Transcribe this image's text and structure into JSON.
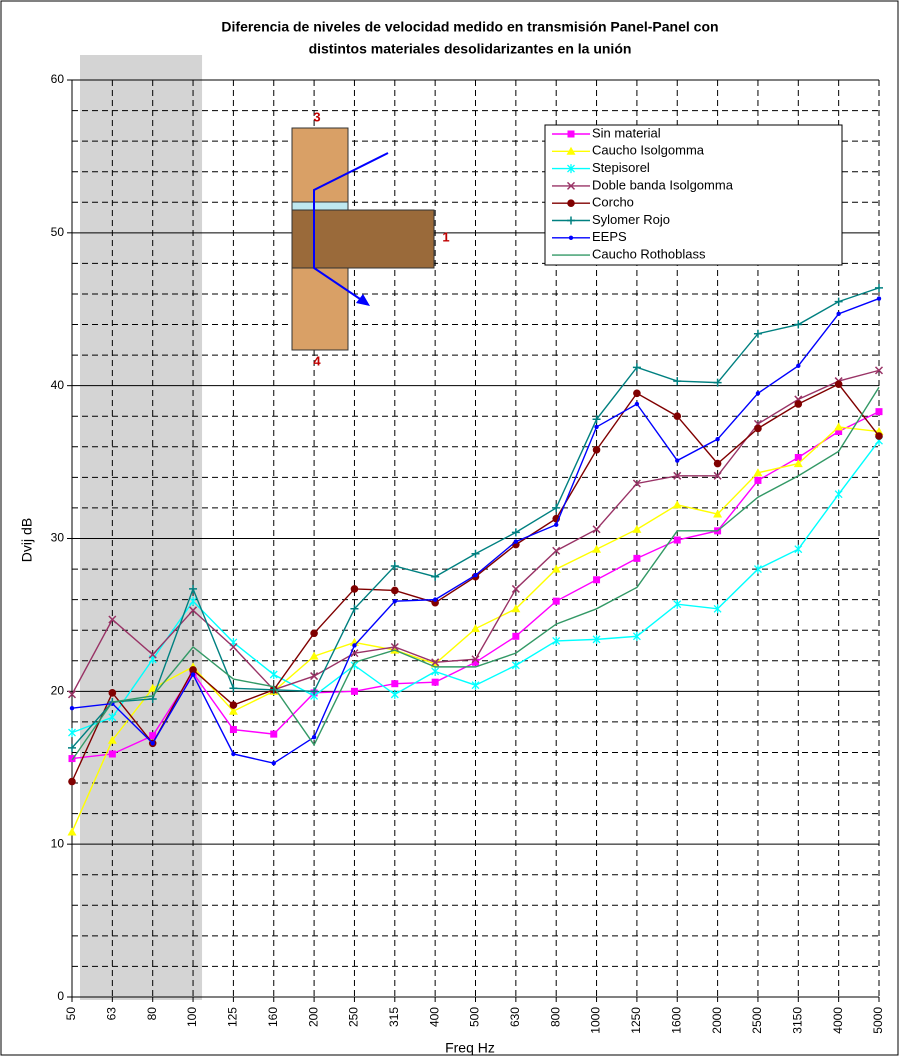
{
  "chart_data": {
    "type": "line",
    "title": [
      "Diferencia de niveles de velocidad medido en transmisión Panel-Panel con",
      "distintos materiales desolidarizantes en la unión"
    ],
    "x_label": "Freq  Hz",
    "y_label": "Dvij dB",
    "categories": [
      "50",
      "63",
      "80",
      "100",
      "125",
      "160",
      "200",
      "250",
      "315",
      "400",
      "500",
      "630",
      "800",
      "1000",
      "1250",
      "1600",
      "2000",
      "2500",
      "3150",
      "4000",
      "5000"
    ],
    "ylim": [
      0,
      60
    ],
    "yticks": [
      0,
      10,
      20,
      30,
      40,
      50,
      60
    ],
    "minor_yticks": [
      2,
      4,
      6,
      8,
      12,
      14,
      16,
      18,
      22,
      24,
      26,
      28,
      32,
      34,
      36,
      38,
      42,
      44,
      46,
      48,
      52,
      54,
      56,
      58
    ],
    "grid": true,
    "highlight": {
      "from": "50",
      "to": "100"
    },
    "inset_labels": [
      "3",
      "1",
      "4"
    ],
    "series": [
      {
        "name": "Sin material",
        "color": "#ff00ff",
        "marker": "square",
        "values": [
          15.6,
          15.9,
          17.1,
          21.2,
          17.5,
          17.2,
          19.9,
          20.0,
          20.5,
          20.6,
          21.9,
          23.6,
          25.9,
          27.3,
          28.7,
          29.9,
          30.5,
          33.8,
          35.3,
          37.0,
          38.3
        ]
      },
      {
        "name": "Caucho Isolgomma",
        "color": "#ffff00",
        "marker": "triangle",
        "values": [
          10.8,
          16.8,
          20.2,
          21.6,
          18.7,
          20.0,
          22.3,
          23.2,
          22.7,
          21.8,
          24.1,
          25.4,
          28.0,
          29.3,
          30.6,
          32.2,
          31.6,
          34.3,
          34.9,
          37.3,
          37.0
        ]
      },
      {
        "name": "Stepisorel",
        "color": "#00ffff",
        "marker": "star",
        "values": [
          17.3,
          18.3,
          22.1,
          25.9,
          23.2,
          21.1,
          19.7,
          21.7,
          19.8,
          21.3,
          20.4,
          21.7,
          23.3,
          23.4,
          23.6,
          25.7,
          25.4,
          28.0,
          29.3,
          32.9,
          36.4
        ]
      },
      {
        "name": "Doble banda Isolgomma",
        "color": "#993366",
        "marker": "x",
        "values": [
          19.8,
          24.7,
          22.4,
          25.3,
          22.9,
          20.1,
          21.0,
          22.5,
          22.9,
          21.9,
          22.1,
          26.7,
          29.2,
          30.6,
          33.6,
          34.1,
          34.1,
          37.5,
          39.1,
          40.3,
          41.0
        ]
      },
      {
        "name": "Corcho",
        "color": "#800000",
        "marker": "circle",
        "values": [
          14.1,
          19.9,
          16.6,
          21.4,
          19.1,
          20.1,
          23.8,
          26.7,
          26.6,
          25.8,
          27.5,
          29.6,
          31.3,
          35.8,
          39.5,
          38.0,
          34.9,
          37.2,
          38.8,
          40.1,
          36.7
        ]
      },
      {
        "name": "Sylomer Rojo",
        "color": "#008080",
        "marker": "plus",
        "values": [
          16.3,
          19.3,
          19.5,
          26.7,
          20.2,
          20.1,
          20.0,
          25.4,
          28.2,
          27.5,
          29.0,
          30.4,
          32.0,
          37.8,
          41.2,
          40.3,
          40.2,
          43.4,
          44.0,
          45.5,
          46.4
        ]
      },
      {
        "name": "EEPS",
        "color": "#0000ff",
        "marker": "dot",
        "values": [
          18.9,
          19.2,
          16.6,
          21.1,
          15.9,
          15.3,
          17.0,
          23.0,
          25.9,
          26.0,
          27.6,
          29.8,
          30.9,
          37.3,
          38.8,
          35.1,
          36.5,
          39.5,
          41.3,
          44.7,
          45.7
        ]
      },
      {
        "name": "Caucho Rothoblass",
        "color": "#339966",
        "marker": "none",
        "values": [
          15.5,
          19.3,
          19.7,
          22.9,
          20.8,
          20.3,
          16.5,
          21.9,
          22.7,
          21.6,
          21.6,
          22.5,
          24.4,
          25.4,
          26.8,
          30.5,
          30.5,
          32.7,
          34.1,
          35.7,
          39.9
        ]
      }
    ]
  }
}
